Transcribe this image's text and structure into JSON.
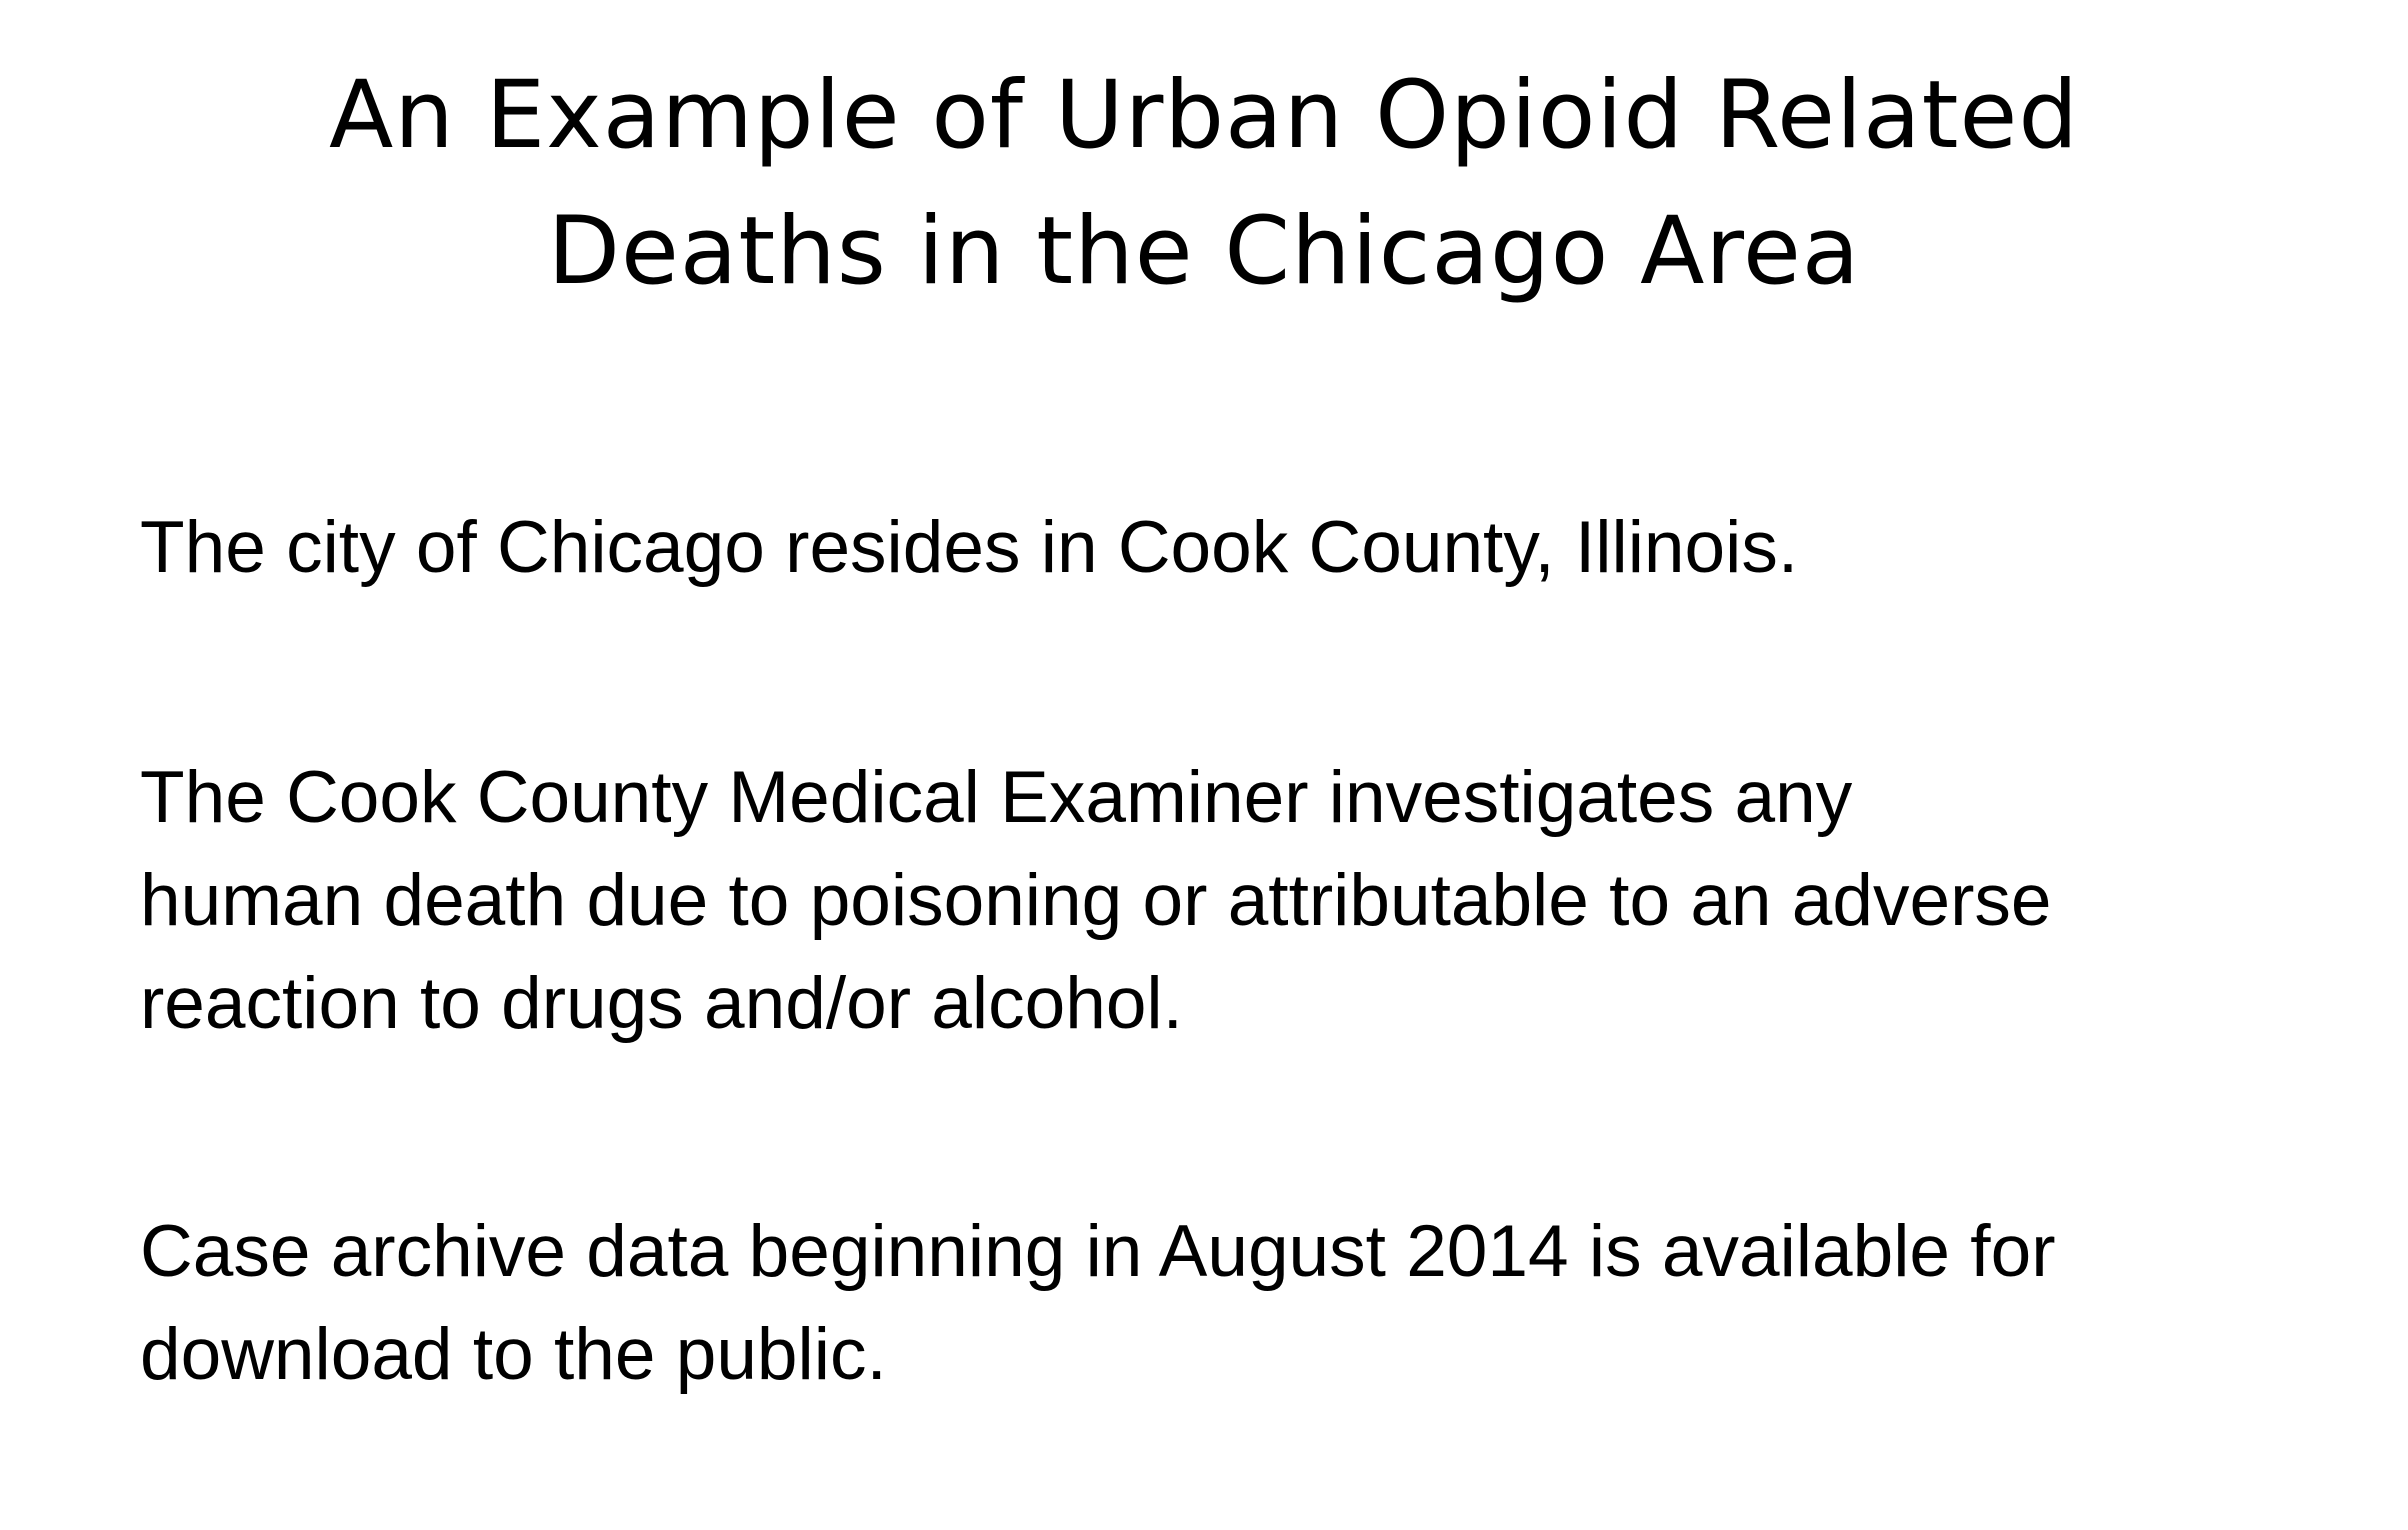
{
  "slide": {
    "title_lines": [
      "An Example of Urban Opioid Related",
      "Deaths in the Chicago Area"
    ],
    "paragraphs": [
      {
        "lines": [
          "The city of Chicago resides in Cook County, Illinois."
        ]
      },
      {
        "lines": [
          "The Cook County Medical Examiner investigates any",
          "human death due to poisoning or attributable to an adverse",
          "reaction to drugs and/or alcohol."
        ]
      },
      {
        "lines": [
          "Case archive data beginning in August 2014 is available for",
          "download to the public."
        ]
      }
    ]
  },
  "colors": {
    "background": "#ffffff",
    "text": "#000000"
  }
}
